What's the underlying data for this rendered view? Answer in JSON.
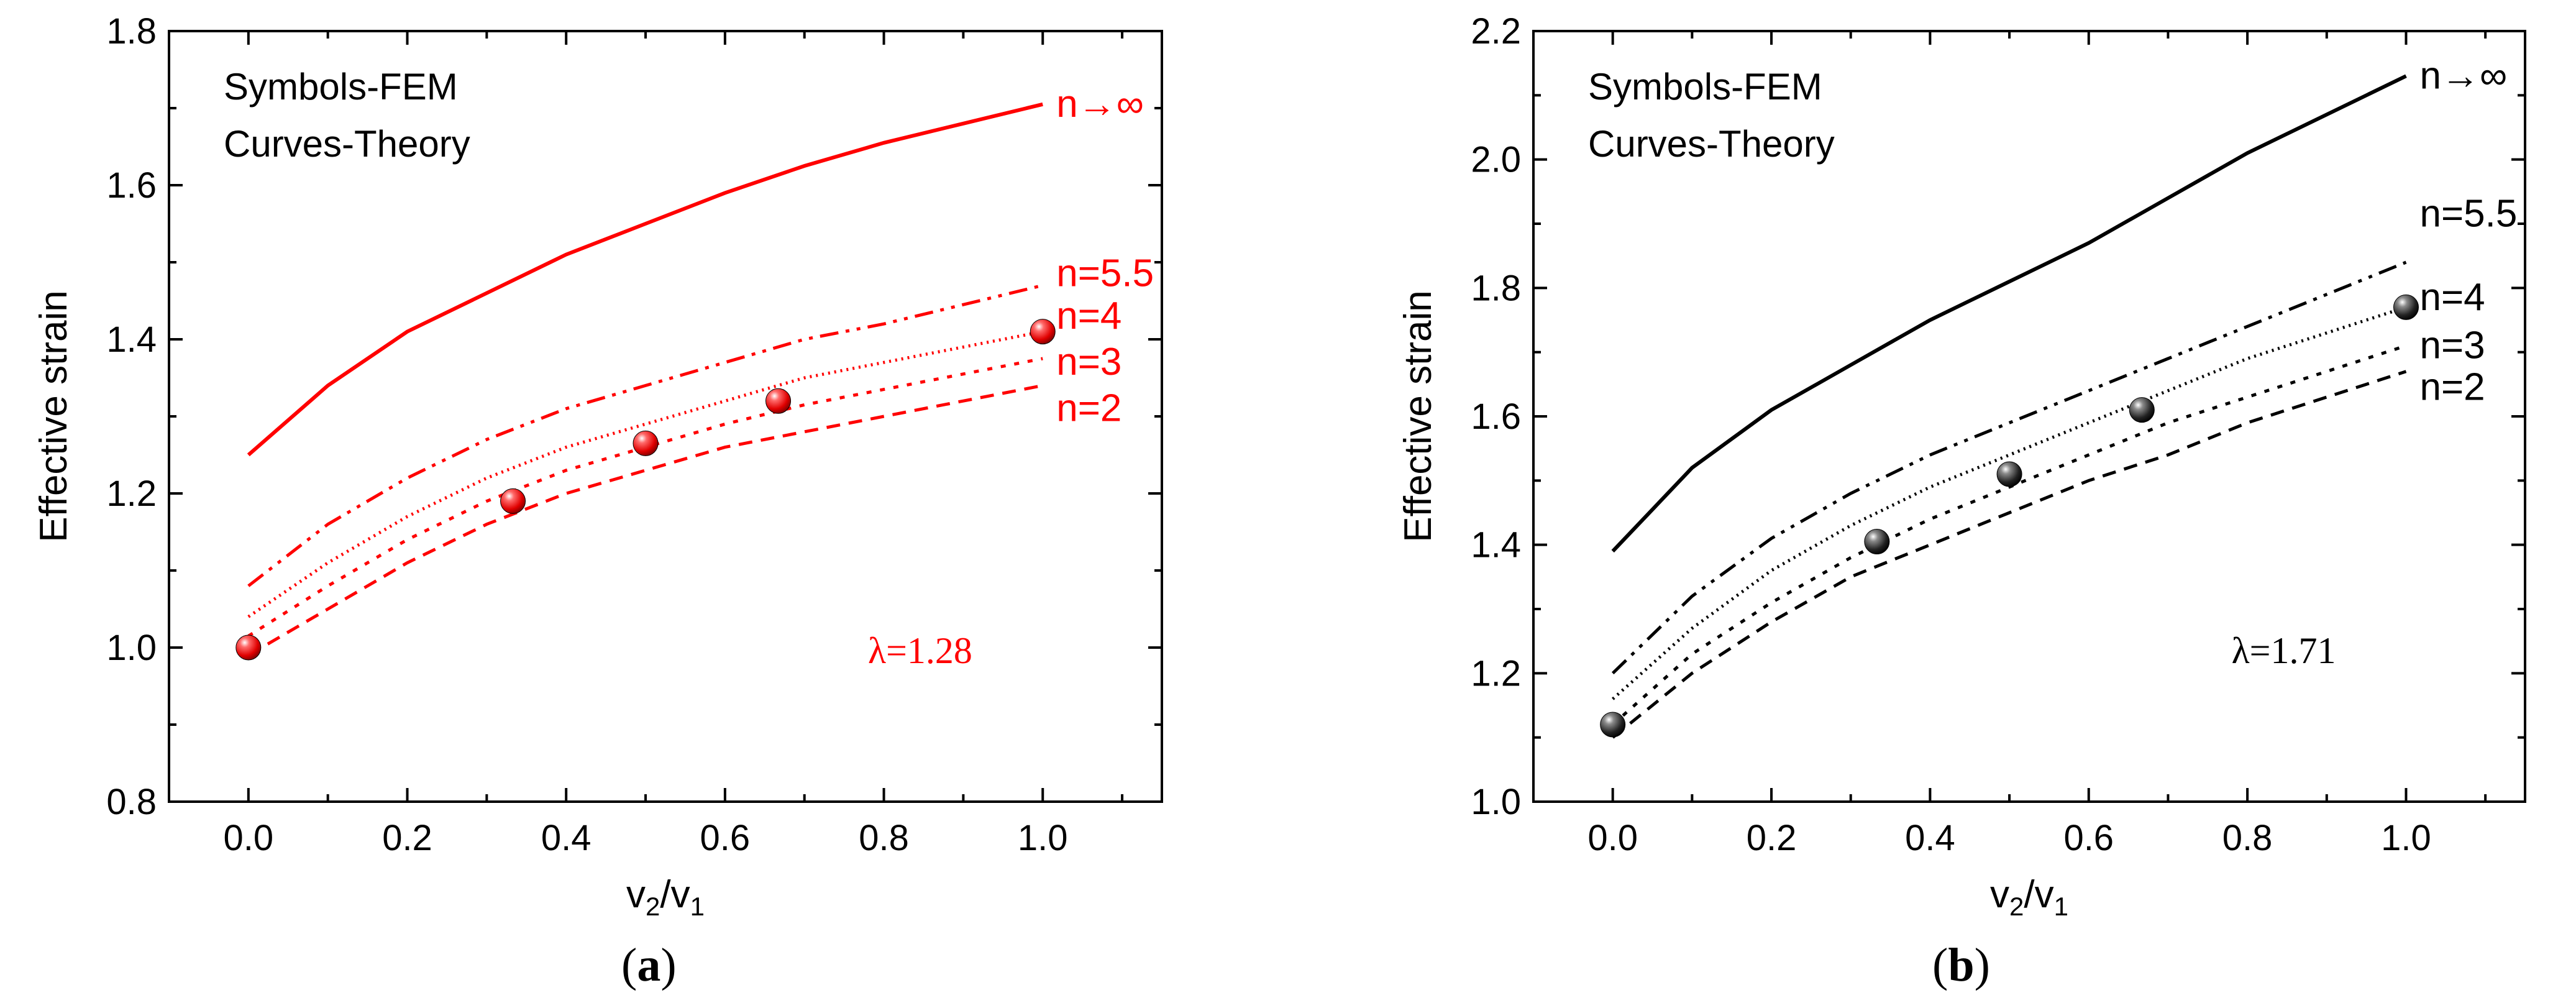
{
  "figure": {
    "captions": [
      {
        "open": "(",
        "letter": "a",
        "close": ")"
      },
      {
        "open": "(",
        "letter": "b",
        "close": ")"
      }
    ]
  },
  "chart_data": [
    {
      "type": "line",
      "panel": "a",
      "color": "#ff0000",
      "xlabel": {
        "base": "v",
        "sub": "2",
        "slash": "/",
        "base2": "v",
        "sub2": "1"
      },
      "ylabel": "Effective strain",
      "xlim": [
        -0.1,
        1.15
      ],
      "ylim": [
        0.8,
        1.8
      ],
      "xticks": [
        0.0,
        0.2,
        0.4,
        0.6,
        0.8,
        1.0
      ],
      "xtick_labels": [
        "0.0",
        "0.2",
        "0.4",
        "0.6",
        "0.8",
        "1.0"
      ],
      "yticks": [
        0.8,
        1.0,
        1.2,
        1.4,
        1.6,
        1.8
      ],
      "ytick_labels": [
        "0.8",
        "1.0",
        "1.2",
        "1.4",
        "1.6",
        "1.8"
      ],
      "legend": [
        "Symbols-FEM",
        "Curves-Theory"
      ],
      "annotation": "λ=1.28",
      "series": [
        {
          "name": "n→∞",
          "style": "solid",
          "x": [
            0,
            0.1,
            0.2,
            0.3,
            0.4,
            0.5,
            0.6,
            0.7,
            0.8,
            0.9,
            1.0
          ],
          "y": [
            1.25,
            1.34,
            1.41,
            1.46,
            1.51,
            1.55,
            1.59,
            1.625,
            1.655,
            1.68,
            1.705
          ],
          "label_value": 1.705
        },
        {
          "name": "n=5.5",
          "style": "dashdotdot",
          "x": [
            0,
            0.1,
            0.2,
            0.3,
            0.4,
            0.5,
            0.6,
            0.7,
            0.8,
            0.9,
            1.0
          ],
          "y": [
            1.08,
            1.16,
            1.22,
            1.27,
            1.31,
            1.34,
            1.37,
            1.4,
            1.42,
            1.445,
            1.47
          ],
          "label_value": 1.485
        },
        {
          "name": "n=4",
          "style": "dotted",
          "x": [
            0,
            0.1,
            0.2,
            0.3,
            0.4,
            0.5,
            0.6,
            0.7,
            0.8,
            0.9,
            1.0
          ],
          "y": [
            1.04,
            1.11,
            1.17,
            1.22,
            1.26,
            1.29,
            1.32,
            1.35,
            1.37,
            1.39,
            1.41
          ],
          "label_value": 1.43
        },
        {
          "name": "n=3",
          "style": "shortdot",
          "x": [
            0,
            0.1,
            0.2,
            0.3,
            0.4,
            0.5,
            0.6,
            0.7,
            0.8,
            0.9,
            1.0
          ],
          "y": [
            1.015,
            1.08,
            1.14,
            1.19,
            1.23,
            1.26,
            1.29,
            1.315,
            1.335,
            1.355,
            1.375
          ],
          "label_value": 1.37
        },
        {
          "name": "n=2",
          "style": "dashed",
          "x": [
            0,
            0.1,
            0.2,
            0.3,
            0.4,
            0.5,
            0.6,
            0.7,
            0.8,
            0.9,
            1.0
          ],
          "y": [
            0.99,
            1.05,
            1.11,
            1.16,
            1.2,
            1.23,
            1.26,
            1.28,
            1.3,
            1.32,
            1.34
          ],
          "label_value": 1.31
        }
      ],
      "fem_points": {
        "x": [
          0.0,
          0.333,
          0.5,
          0.667,
          1.0
        ],
        "y": [
          1.0,
          1.19,
          1.265,
          1.32,
          1.41
        ]
      }
    },
    {
      "type": "line",
      "panel": "b",
      "color": "#000000",
      "xlabel": {
        "base": "v",
        "sub": "2",
        "slash": "/",
        "base2": "v",
        "sub2": "1"
      },
      "ylabel": "Effective strain",
      "xlim": [
        -0.1,
        1.15
      ],
      "ylim": [
        1.0,
        2.2
      ],
      "xticks": [
        0.0,
        0.2,
        0.4,
        0.6,
        0.8,
        1.0
      ],
      "xtick_labels": [
        "0.0",
        "0.2",
        "0.4",
        "0.6",
        "0.8",
        "1.0"
      ],
      "yticks": [
        1.0,
        1.2,
        1.4,
        1.6,
        1.8,
        2.0,
        2.2
      ],
      "ytick_labels": [
        "1.0",
        "1.2",
        "1.4",
        "1.6",
        "1.8",
        "2.0",
        "2.2"
      ],
      "legend": [
        "Symbols-FEM",
        "Curves-Theory"
      ],
      "annotation": "λ=1.71",
      "series": [
        {
          "name": "n→∞",
          "style": "solid",
          "x": [
            0,
            0.1,
            0.2,
            0.3,
            0.4,
            0.5,
            0.6,
            0.7,
            0.8,
            0.9,
            1.0
          ],
          "y": [
            1.39,
            1.52,
            1.61,
            1.68,
            1.75,
            1.81,
            1.87,
            1.94,
            2.01,
            2.07,
            2.13
          ],
          "label_value": 2.13
        },
        {
          "name": "n=5.5",
          "style": "dashdotdot",
          "x": [
            0,
            0.1,
            0.2,
            0.3,
            0.4,
            0.5,
            0.6,
            0.7,
            0.8,
            0.9,
            1.0
          ],
          "y": [
            1.2,
            1.32,
            1.41,
            1.48,
            1.54,
            1.59,
            1.64,
            1.69,
            1.74,
            1.79,
            1.84
          ],
          "label_value": 1.915
        },
        {
          "name": "n=4",
          "style": "dotted",
          "x": [
            0,
            0.1,
            0.2,
            0.3,
            0.4,
            0.5,
            0.6,
            0.7,
            0.8,
            0.9,
            1.0
          ],
          "y": [
            1.16,
            1.27,
            1.36,
            1.43,
            1.49,
            1.54,
            1.59,
            1.64,
            1.69,
            1.73,
            1.77
          ],
          "label_value": 1.785
        },
        {
          "name": "n=3",
          "style": "shortdot",
          "x": [
            0,
            0.1,
            0.2,
            0.3,
            0.4,
            0.5,
            0.6,
            0.7,
            0.8,
            0.9,
            1.0
          ],
          "y": [
            1.12,
            1.23,
            1.31,
            1.38,
            1.44,
            1.49,
            1.54,
            1.59,
            1.63,
            1.67,
            1.71
          ],
          "label_value": 1.71
        },
        {
          "name": "n=2",
          "style": "dashed",
          "x": [
            0,
            0.1,
            0.2,
            0.3,
            0.4,
            0.5,
            0.6,
            0.7,
            0.8,
            0.9,
            1.0
          ],
          "y": [
            1.1,
            1.2,
            1.28,
            1.35,
            1.4,
            1.45,
            1.5,
            1.54,
            1.59,
            1.63,
            1.67
          ],
          "label_value": 1.645
        }
      ],
      "fem_points": {
        "x": [
          0.0,
          0.333,
          0.5,
          0.667,
          1.0
        ],
        "y": [
          1.12,
          1.405,
          1.51,
          1.61,
          1.77
        ]
      }
    }
  ]
}
